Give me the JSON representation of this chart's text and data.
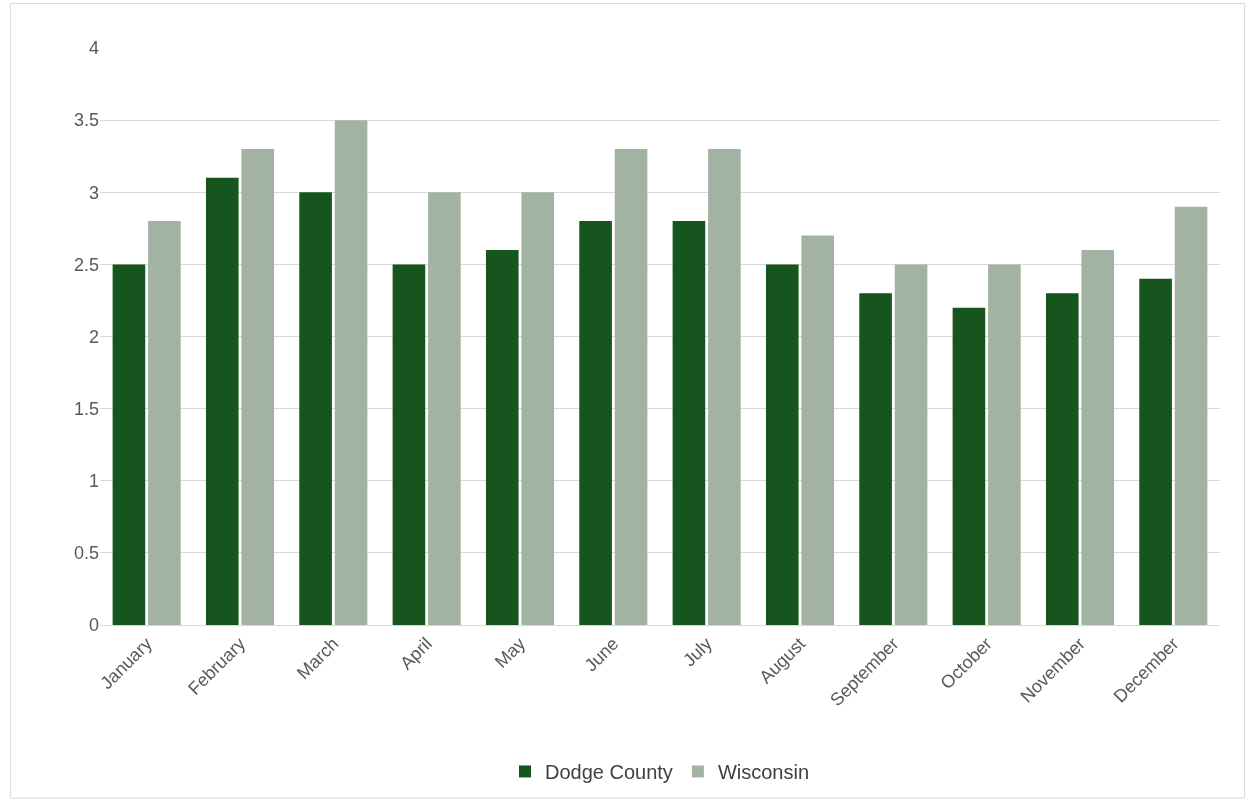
{
  "chart_data": {
    "type": "bar",
    "categories": [
      "January",
      "February",
      "March",
      "April",
      "May",
      "June",
      "July",
      "August",
      "September",
      "October",
      "November",
      "December"
    ],
    "series": [
      {
        "name": "Dodge County",
        "color": "#16561e",
        "values": [
          2.5,
          3.1,
          3.0,
          2.5,
          2.6,
          2.8,
          2.8,
          2.5,
          2.3,
          2.2,
          2.3,
          2.4
        ]
      },
      {
        "name": "Wisconsin",
        "color": "#a3b3a3",
        "values": [
          2.8,
          3.3,
          3.5,
          3.0,
          3.0,
          3.3,
          3.3,
          2.7,
          2.5,
          2.5,
          2.6,
          2.9
        ]
      }
    ],
    "ylim": [
      0,
      4
    ],
    "yticks": [
      0,
      0.5,
      1,
      1.5,
      2,
      2.5,
      3,
      3.5,
      4
    ],
    "grid": "y",
    "legend": "bottom"
  }
}
